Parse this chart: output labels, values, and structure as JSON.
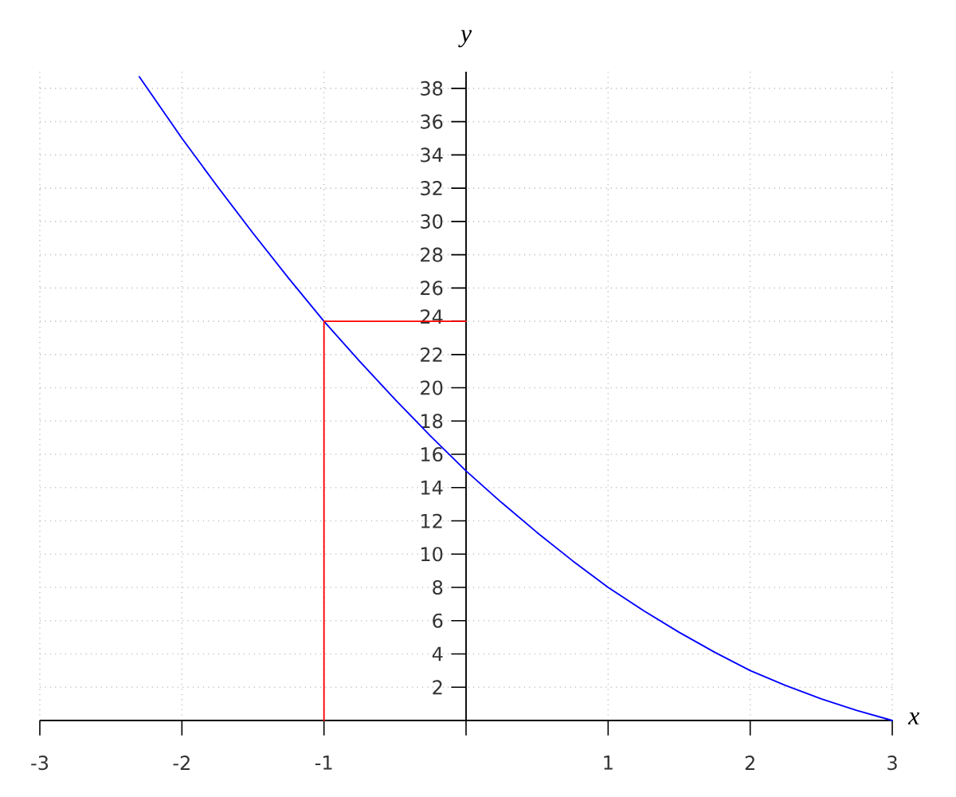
{
  "chart_data": {
    "type": "line",
    "xlabel": "x",
    "ylabel": "y",
    "xlim": [
      -3,
      3
    ],
    "ylim": [
      0,
      39
    ],
    "xticks": [
      -3,
      -2,
      -1,
      {
        "value": 0,
        "label": null
      },
      1,
      2,
      3
    ],
    "yticks": [
      2,
      4,
      6,
      8,
      10,
      12,
      14,
      16,
      18,
      20,
      22,
      24,
      26,
      28,
      30,
      32,
      34,
      36,
      38
    ],
    "grid": true,
    "marker": "none",
    "line_style": "solid",
    "series": [
      {
        "color": "#0000ff",
        "x": [
          -2.3,
          -2,
          -1.75,
          -1.5,
          -1.25,
          -1,
          -0.75,
          -0.5,
          -0.25,
          0,
          0.25,
          0.5,
          0.75,
          1,
          1.25,
          1.5,
          1.75,
          2,
          2.25,
          2.5,
          2.75,
          3
        ],
        "values": [
          38.7,
          35,
          32.1,
          29.3,
          26.6,
          24,
          21.6,
          19.3,
          17.1,
          15,
          13.1,
          11.3,
          9.6,
          8,
          6.6,
          5.3,
          4.1,
          3,
          2.1,
          1.3,
          0.6,
          0
        ]
      },
      {
        "color": "#ff0000",
        "x": [
          -1,
          -1,
          0
        ],
        "values": [
          0,
          24,
          24
        ]
      }
    ]
  }
}
